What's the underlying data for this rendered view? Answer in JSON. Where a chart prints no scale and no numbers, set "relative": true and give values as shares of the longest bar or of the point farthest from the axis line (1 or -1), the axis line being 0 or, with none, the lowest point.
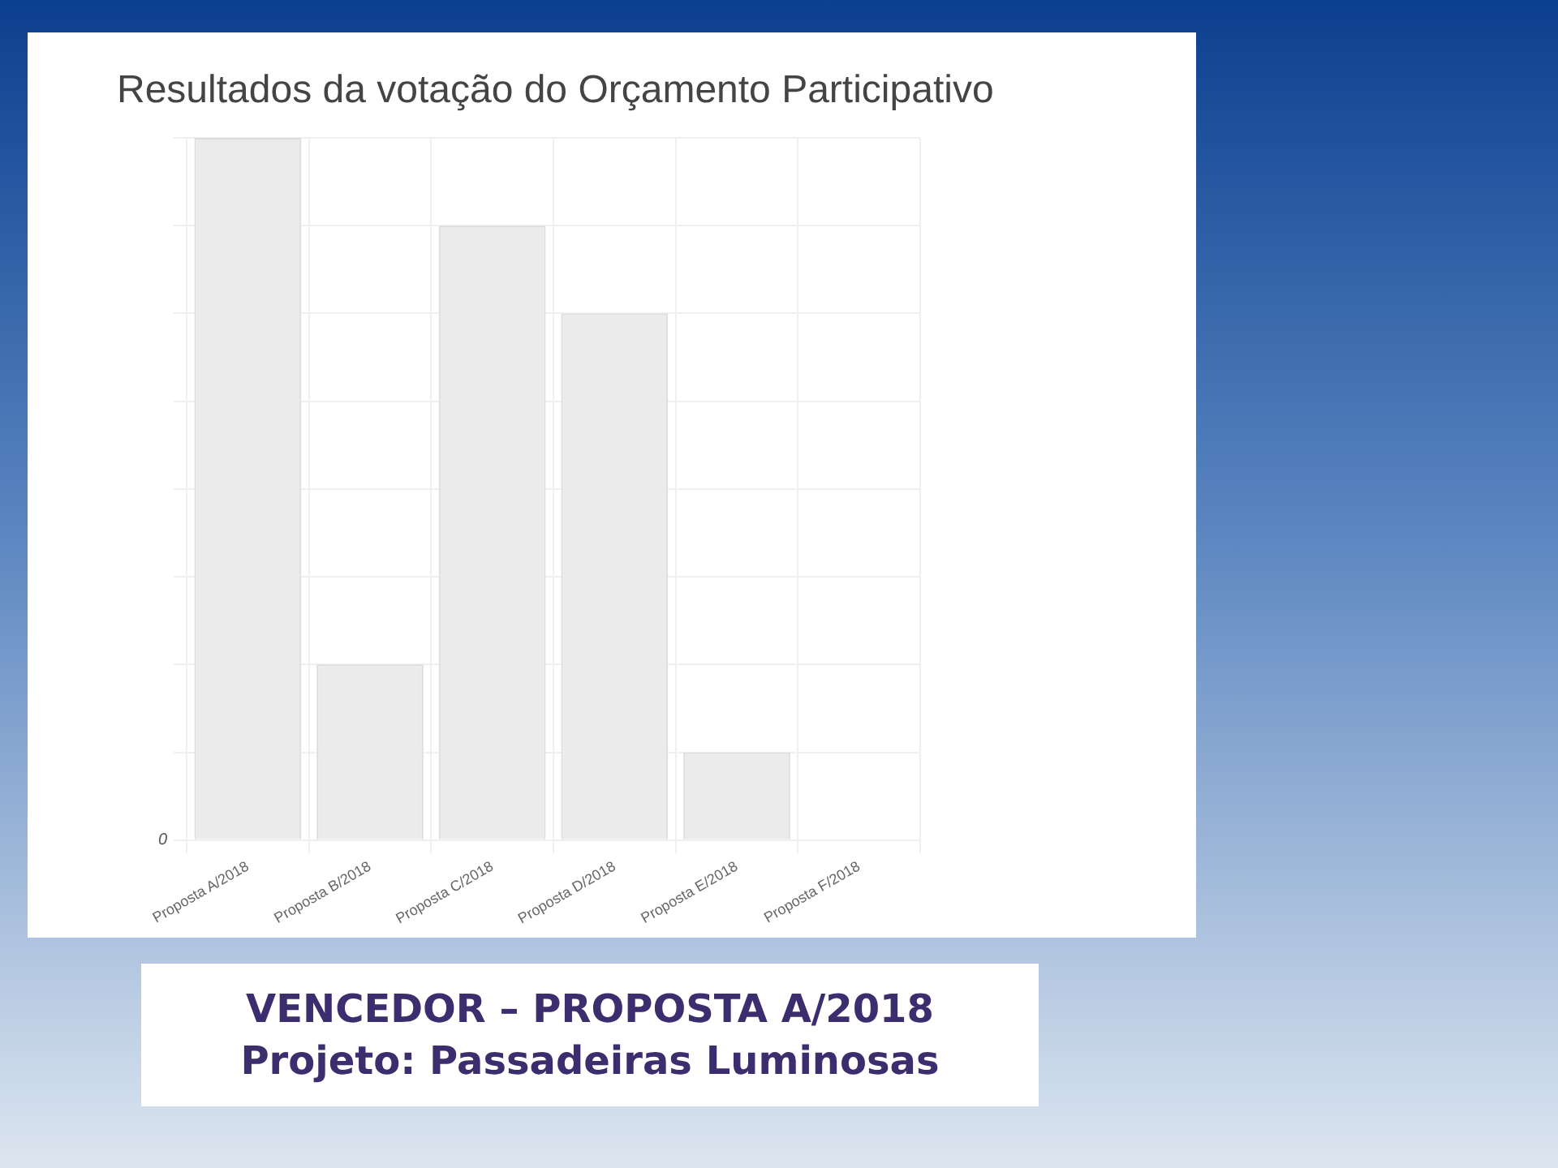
{
  "chart_data": {
    "type": "bar",
    "title": "Resultados da votação do Orçamento Participativo",
    "categories": [
      "Proposta A/2018",
      "Proposta B/2018",
      "Proposta C/2018",
      "Proposta D/2018",
      "Proposta E/2018",
      "Proposta F/2018"
    ],
    "values": [
      1,
      0.25,
      0.875,
      0.75,
      0.125,
      0
    ],
    "color": "#ebebeb",
    "relative": true,
    "grid": true,
    "legend": false,
    "annotations": [
      "0",
      "VENCEDOR – PROPOSTA A/2018",
      "Projeto: Passadeiras Luminosas"
    ]
  }
}
